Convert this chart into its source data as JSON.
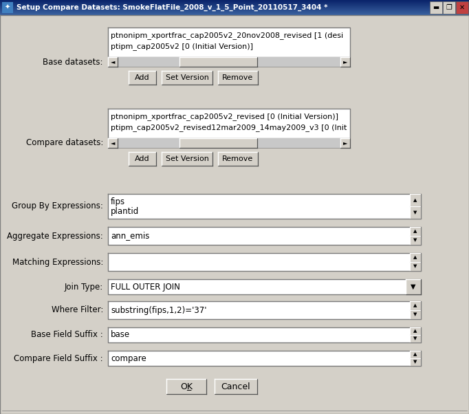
{
  "title": "Setup Compare Datasets: SmokeFlatFile_2008_v_1_5_Point_20110517_3404 *",
  "bg_color": "#d4d0c8",
  "white": "#ffffff",
  "base_datasets_text_line1": "ptnonipm_xportfrac_cap2005v2_20nov2008_revised [1 (desi",
  "base_datasets_text_line2": "ptipm_cap2005v2 [0 (Initial Version)]",
  "compare_datasets_text_line1": "ptnonipm_xportfrac_cap2005v2_revised [0 (Initial Version)]",
  "compare_datasets_text_line2": "ptipm_cap2005v2_revised12mar2009_14may2009_v3 [0 (Init",
  "group_by_label": "Group By Expressions:",
  "group_by_line1": "fips",
  "group_by_line2": "plantid",
  "aggregate_label": "Aggregate Expressions:",
  "aggregate_text": "ann_emis",
  "matching_label": "Matching Expressions:",
  "join_label": "Join Type:",
  "join_text": "FULL OUTER JOIN",
  "where_label": "Where Filter:",
  "where_text": "substring(fips,1,2)='37'",
  "base_suffix_label": "Base Field Suffix :",
  "base_suffix_text": "base",
  "compare_suffix_label": "Compare Field Suffix :",
  "compare_suffix_text": "compare",
  "base_datasets_label": "Base datasets:",
  "compare_datasets_label": "Compare datasets:",
  "btn_add": "Add",
  "btn_set_version": "Set Version",
  "btn_remove": "Remove",
  "btn_ok": "OK",
  "btn_cancel": "Cancel",
  "title_bar_color1": "#0a246a",
  "title_bar_color2": "#3a6ea5",
  "title_text_color": "#ffffff",
  "label_color": "#000000",
  "field_text_color": "#000000"
}
